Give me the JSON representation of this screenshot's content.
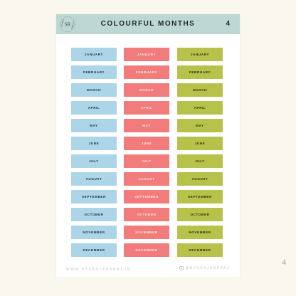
{
  "header": {
    "logo_text": "SR",
    "title": "COLOURFUL MONTHS",
    "page_number": "4"
  },
  "columns": [
    {
      "color": "#acd6e8",
      "months": [
        "JANUARY",
        "FEBRUARY",
        "MARCH",
        "APRIL",
        "MAY",
        "JUNE",
        "JULY",
        "AUGUST",
        "SEPTEMBER",
        "OCTOBER",
        "NOVEMBER",
        "DECEMBER"
      ]
    },
    {
      "color": "#f27b7b",
      "months": [
        "JANUARY",
        "FEBRUARY",
        "MARCH",
        "APRIL",
        "MAY",
        "JUNE",
        "JULY",
        "AUGUST",
        "SEPTEMBER",
        "OCTOBER",
        "NOVEMBER",
        "DECEMBER"
      ]
    },
    {
      "color": "#b7c24a",
      "months": [
        "JANUARY",
        "FEBRUARY",
        "MARCH",
        "APRIL",
        "MAY",
        "JUNE",
        "JULY",
        "AUGUST",
        "SEPTEMBER",
        "OCTOBER",
        "NOVEMBER",
        "DECEMBER"
      ]
    }
  ],
  "footer": {
    "website": "WWW.BYSANJANARAJ.IN",
    "instagram": "@BYSANJANARAJ",
    "icon": "instagram-icon"
  },
  "corner_page_number": "4"
}
